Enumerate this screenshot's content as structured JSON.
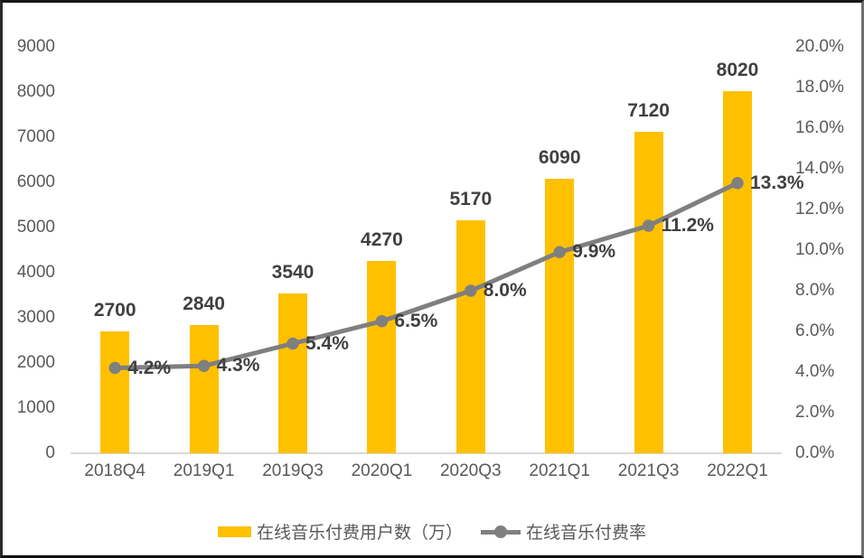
{
  "chart_data": {
    "type": "bar+line",
    "title": "",
    "grid": false,
    "legend_position": "bottom",
    "categories": [
      "2018Q4",
      "2019Q1",
      "2019Q3",
      "2020Q1",
      "2020Q3",
      "2021Q1",
      "2021Q3",
      "2022Q1"
    ],
    "series": [
      {
        "name": "在线音乐付费用户数（万）",
        "type": "bar",
        "axis": "left",
        "values": [
          2700,
          2840,
          3540,
          4270,
          5170,
          6090,
          7120,
          8020
        ],
        "labels": [
          "2700",
          "2840",
          "3540",
          "4270",
          "5170",
          "6090",
          "7120",
          "8020"
        ]
      },
      {
        "name": "在线音乐付费率",
        "type": "line",
        "axis": "right",
        "values": [
          4.2,
          4.3,
          5.4,
          6.5,
          8.0,
          9.9,
          11.2,
          13.3
        ],
        "labels": [
          "4.2%",
          "4.3%",
          "5.4%",
          "6.5%",
          "8.0%",
          "9.9%",
          "11.2%",
          "13.3%"
        ]
      }
    ],
    "left_axis": {
      "min": 0,
      "max": 9000,
      "step": 1000,
      "tick_labels": [
        "0",
        "1000",
        "2000",
        "3000",
        "4000",
        "5000",
        "6000",
        "7000",
        "8000",
        "9000"
      ]
    },
    "right_axis": {
      "min": 0,
      "max": 20,
      "step": 2,
      "tick_labels": [
        "0.0%",
        "2.0%",
        "4.0%",
        "6.0%",
        "8.0%",
        "10.0%",
        "12.0%",
        "14.0%",
        "16.0%",
        "18.0%",
        "20.0%"
      ]
    },
    "colors": {
      "bar": "#FFC000",
      "line": "#7F7F7F",
      "data_label": "#404040",
      "axis_label": "#595959",
      "axis_line": "#D9D9D9",
      "background": "#FFFFFF"
    }
  }
}
